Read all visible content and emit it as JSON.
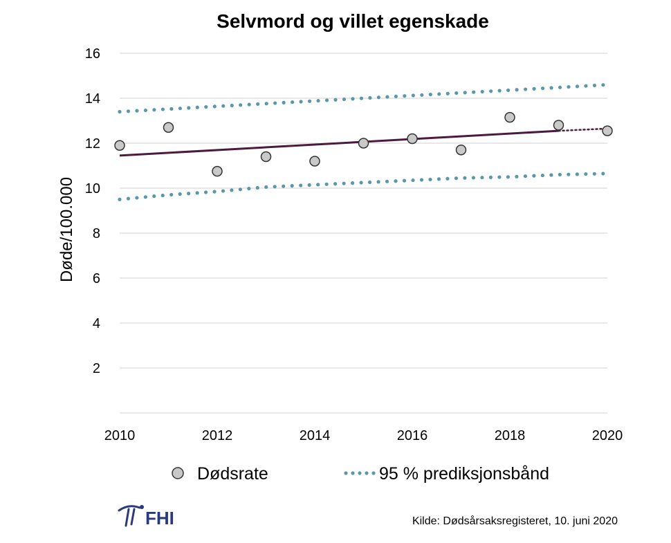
{
  "chart_data": {
    "type": "scatter",
    "title": "Selvmord og villet egenskade",
    "ylabel": "Døde/100.000",
    "xlabel": "",
    "xlim": [
      2010,
      2020
    ],
    "ylim": [
      0,
      16
    ],
    "x_ticks": [
      "2010",
      "2012",
      "2014",
      "2016",
      "2018",
      "2020"
    ],
    "y_ticks": [
      "2",
      "4",
      "6",
      "8",
      "10",
      "12",
      "14",
      "16"
    ],
    "grid": true,
    "legend_position": "bottom",
    "series": [
      {
        "name": "Dødsrate",
        "kind": "points",
        "x": [
          2010,
          2011,
          2012,
          2013,
          2014,
          2015,
          2016,
          2017,
          2018,
          2019,
          2020
        ],
        "values": [
          11.9,
          12.7,
          10.75,
          11.4,
          11.2,
          12.0,
          12.2,
          11.7,
          13.15,
          12.8,
          12.55
        ],
        "color": "#c9c9c9"
      },
      {
        "kind": "trend",
        "x": [
          2010,
          2019
        ],
        "values": [
          11.45,
          12.55
        ],
        "color": "#4d1a3f"
      },
      {
        "kind": "trend-extension",
        "x": [
          2019,
          2020
        ],
        "values": [
          12.55,
          12.65
        ],
        "color": "#4d1a3f"
      },
      {
        "name": "95 % prediksjonsbånd",
        "kind": "band-upper",
        "x": [
          2010,
          2020
        ],
        "values": [
          13.4,
          14.6
        ],
        "color": "#5b97a8"
      },
      {
        "kind": "band-lower",
        "x": [
          2010,
          2011,
          2012,
          2013,
          2014,
          2015,
          2016,
          2017,
          2018,
          2019,
          2020
        ],
        "values": [
          9.5,
          9.7,
          9.85,
          10.05,
          10.15,
          10.25,
          10.35,
          10.45,
          10.5,
          10.6,
          10.65
        ],
        "color": "#5b97a8"
      }
    ],
    "legend": [
      "Dødsrate",
      "95 % prediksjonsbånd"
    ]
  },
  "footer": {
    "logo_text": "FHI",
    "source": "Kilde: Dødsårsaksregisteret, 10. juni 2020"
  }
}
